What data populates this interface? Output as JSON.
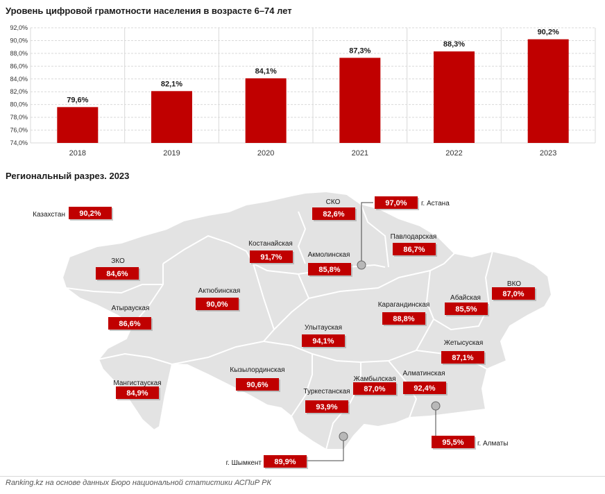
{
  "chart_data": [
    {
      "type": "bar",
      "title": "Уровень цифровой грамотности населения в возрасте 6–74 лет",
      "categories": [
        "2018",
        "2019",
        "2020",
        "2021",
        "2022",
        "2023"
      ],
      "values": [
        79.6,
        82.1,
        84.1,
        87.3,
        88.3,
        90.2
      ],
      "value_labels": [
        "79,6%",
        "82,1%",
        "84,1%",
        "87,3%",
        "88,3%",
        "90,2%"
      ],
      "ylim": [
        74,
        92
      ],
      "yticks": [
        74,
        76,
        78,
        80,
        82,
        84,
        86,
        88,
        90,
        92
      ],
      "ytick_labels": [
        "74,0%",
        "76,0%",
        "78,0%",
        "80,0%",
        "82,0%",
        "84,0%",
        "86,0%",
        "88,0%",
        "90,0%",
        "92,0%"
      ],
      "grid": true,
      "xlabel": "",
      "ylabel": ""
    },
    {
      "type": "table",
      "title": "Региональный разрез. 2023",
      "country": {
        "name": "Казахстан",
        "value": 90.2,
        "label": "90,2%"
      },
      "regions": [
        {
          "name": "СКО",
          "value": 82.6,
          "label": "82,6%"
        },
        {
          "name": "Костанайская",
          "value": 91.7,
          "label": "91,7%"
        },
        {
          "name": "Акмолинская",
          "value": 85.8,
          "label": "85,8%"
        },
        {
          "name": "Павлодарская",
          "value": 86.7,
          "label": "86,7%"
        },
        {
          "name": "ЗКО",
          "value": 84.6,
          "label": "84,6%"
        },
        {
          "name": "Актюбинская",
          "value": 90.0,
          "label": "90,0%"
        },
        {
          "name": "Абайская",
          "value": 85.5,
          "label": "85,5%"
        },
        {
          "name": "ВКО",
          "value": 87.0,
          "label": "87,0%"
        },
        {
          "name": "Атырауская",
          "value": 86.6,
          "label": "86,6%"
        },
        {
          "name": "Карагандинская",
          "value": 88.8,
          "label": "88,8%"
        },
        {
          "name": "Улытауская",
          "value": 94.1,
          "label": "94,1%"
        },
        {
          "name": "Жетысуская",
          "value": 87.1,
          "label": "87,1%"
        },
        {
          "name": "Кызылординская",
          "value": 90.6,
          "label": "90,6%"
        },
        {
          "name": "Мангистауская",
          "value": 84.9,
          "label": "84,9%"
        },
        {
          "name": "Алматинская",
          "value": 92.4,
          "label": "92,4%"
        },
        {
          "name": "Жамбылская",
          "value": 87.0,
          "label": "87,0%"
        },
        {
          "name": "Туркестанская",
          "value": 93.9,
          "label": "93,9%"
        }
      ],
      "cities": [
        {
          "name": "г. Астана",
          "value": 97.0,
          "label": "97,0%"
        },
        {
          "name": "г. Алматы",
          "value": 95.5,
          "label": "95,5%"
        },
        {
          "name": "г. Шымкент",
          "value": 89.9,
          "label": "89,9%"
        }
      ]
    }
  ],
  "colors": {
    "bar": "#c00000",
    "map_fill": "#e3e3e3",
    "map_border": "#ffffff",
    "grid": "#d9d9d9",
    "dot": "#b8b8b8"
  },
  "source": "Ranking.kz на основе данных Бюро национальной статистики АСПиР РК"
}
